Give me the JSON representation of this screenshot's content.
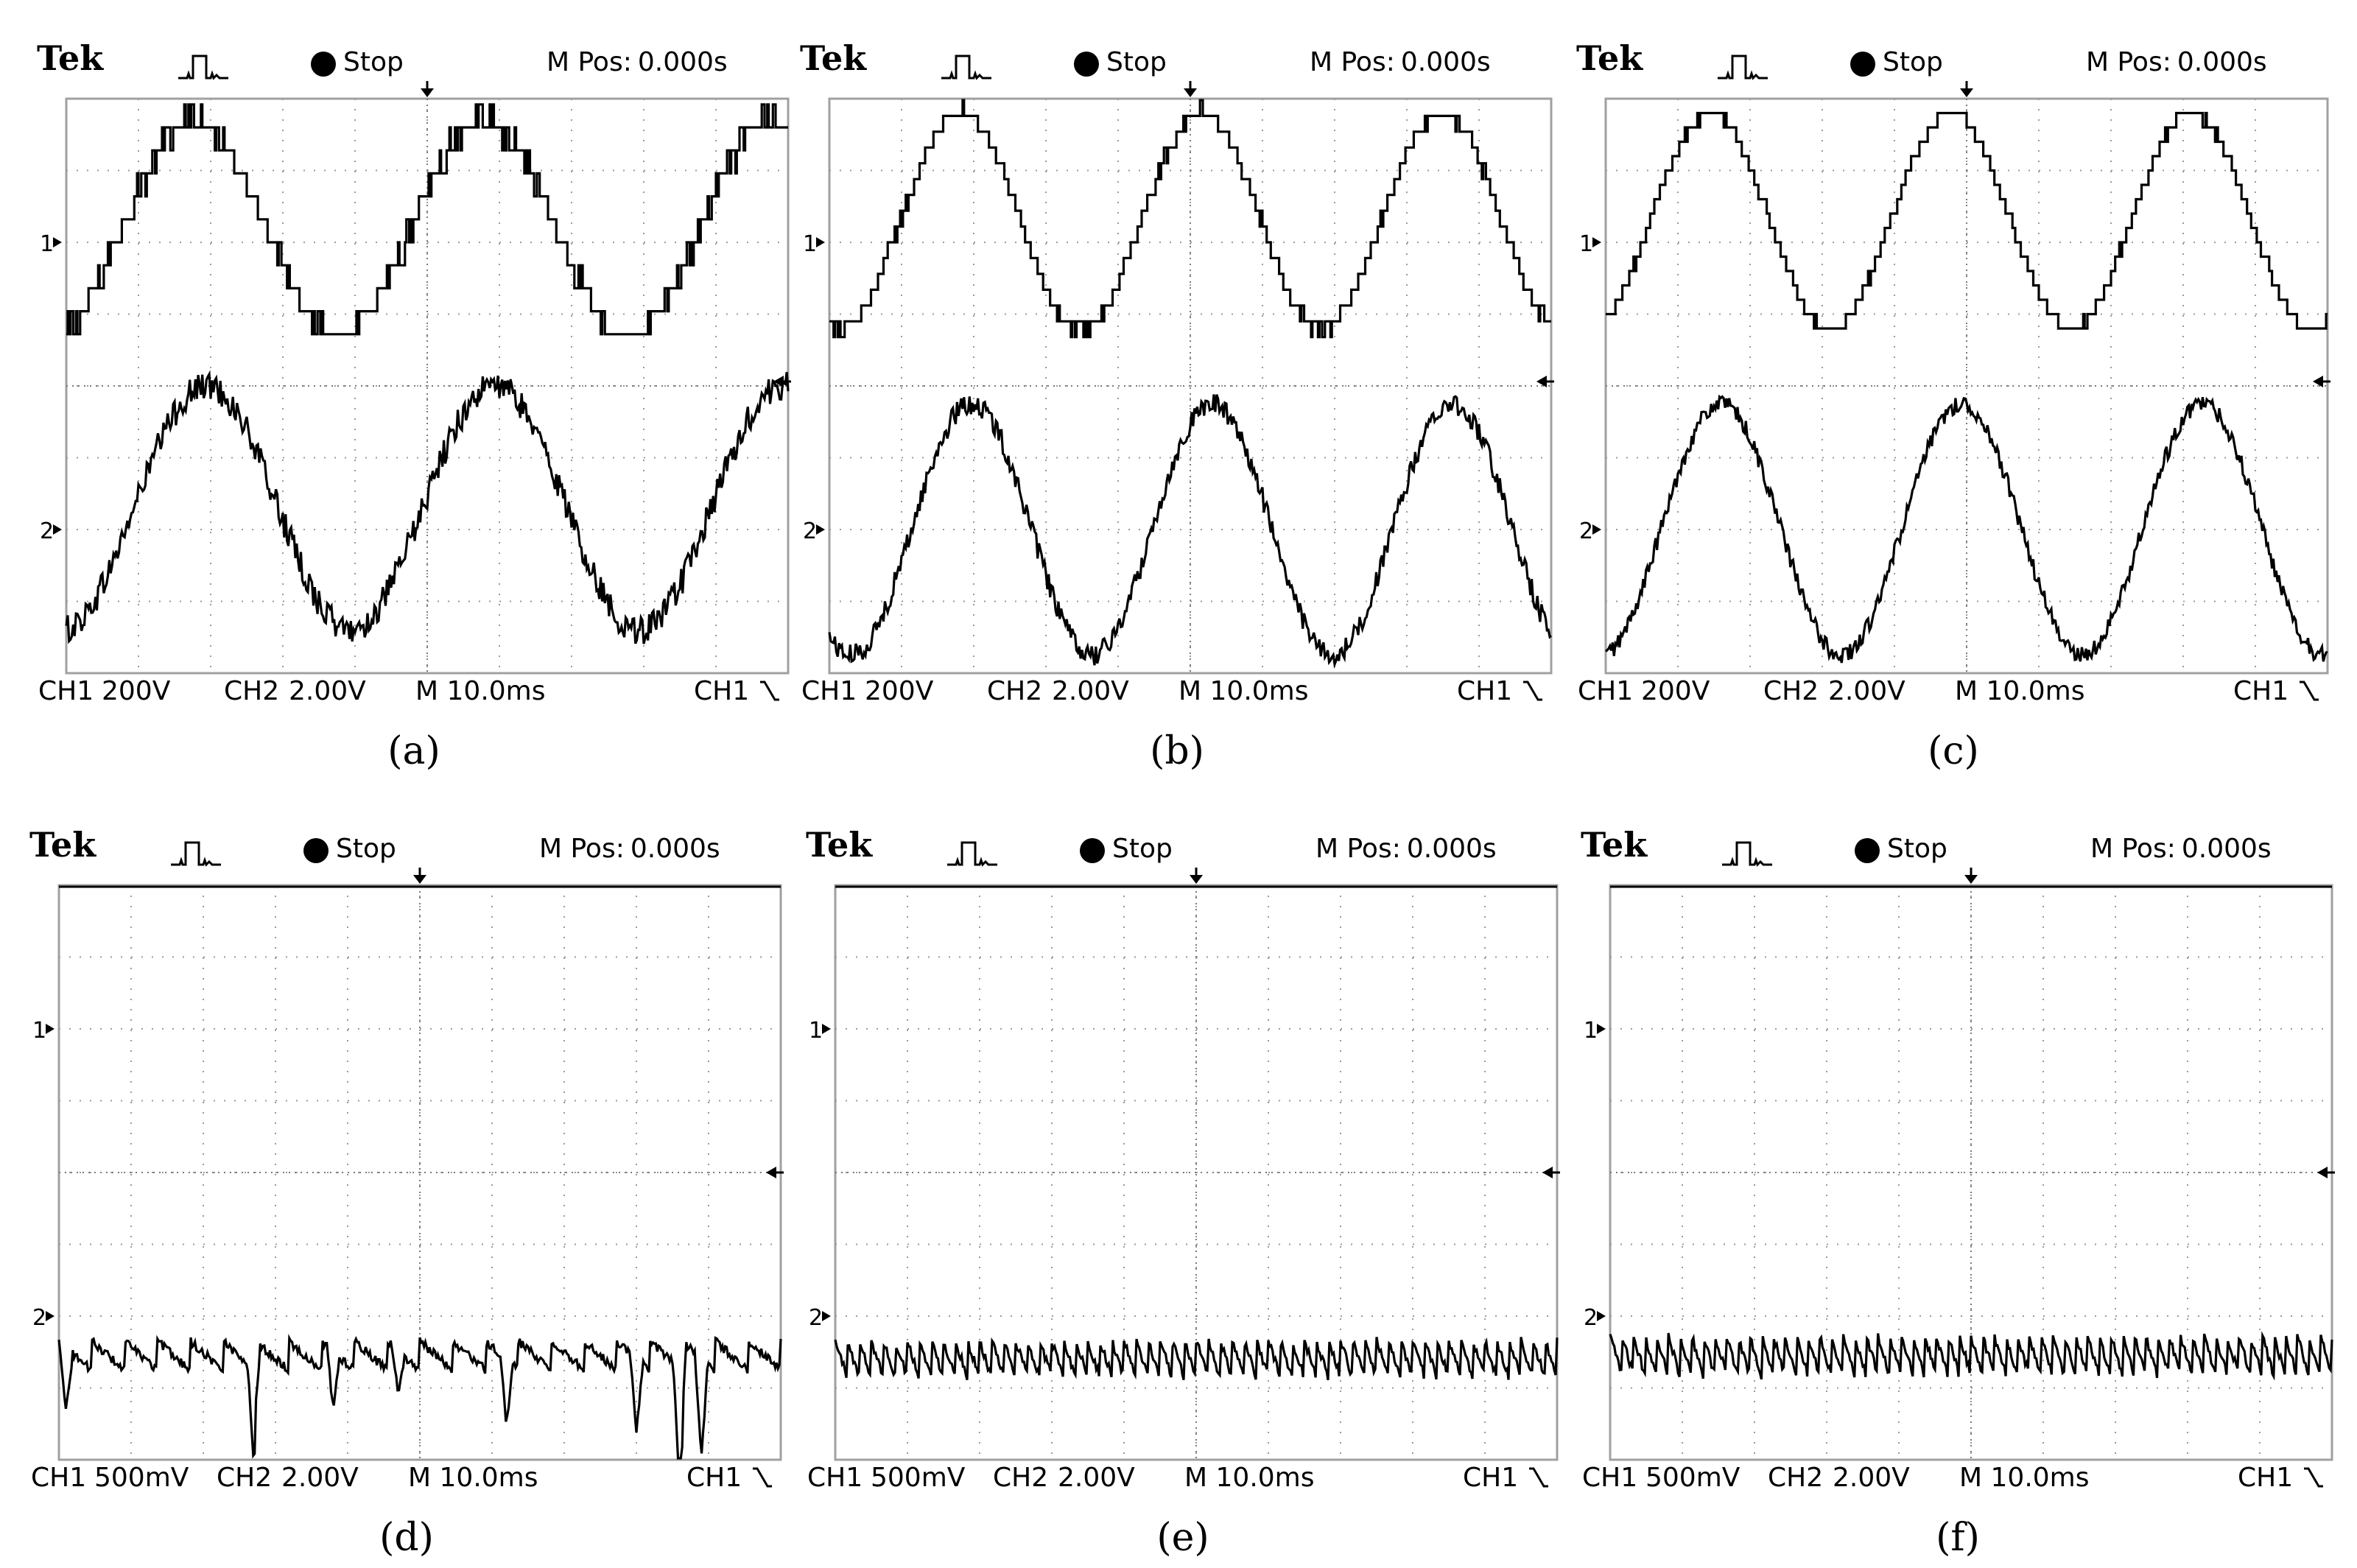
{
  "chart_data": [
    {
      "type": "line",
      "caption": "(a)",
      "header": {
        "brand": "Tek",
        "state": "Stop",
        "mpos_label": "M Pos:",
        "mpos_value": "0.000s"
      },
      "footer": {
        "ch1": "CH1",
        "ch1_scale": "200V",
        "ch2": "CH2",
        "ch2_scale": "2.00V",
        "timebase": "M 10.0ms",
        "trigger": "CH1",
        "trigger_slope": "falling"
      },
      "channel_markers": {
        "ch1": "1",
        "ch2": "2"
      },
      "grid": true,
      "xlim": [
        -50,
        50
      ],
      "series": [
        {
          "channel": 1,
          "shape": "multilevel-stepped-sine",
          "frequency_hz": 25,
          "amplitude_div": 1.5,
          "offset_div": 0.2,
          "phase": 0.35,
          "levels_div": 0.32,
          "noise_div": 0.15
        },
        {
          "channel": 2,
          "shape": "noisy-sine",
          "frequency_hz": 25,
          "amplitude_div": 1.7,
          "offset_div": 0.3,
          "phase": 0.1,
          "noise_div": 0.2
        }
      ]
    },
    {
      "type": "line",
      "caption": "(b)",
      "header": {
        "brand": "Tek",
        "state": "Stop",
        "mpos_label": "M Pos:",
        "mpos_value": "0.000s"
      },
      "footer": {
        "ch1": "CH1",
        "ch1_scale": "200V",
        "ch2": "CH2",
        "ch2_scale": "2.00V",
        "timebase": "M 10.0ms",
        "trigger": "CH1",
        "trigger_slope": "falling"
      },
      "channel_markers": {
        "ch1": "1",
        "ch2": "2"
      },
      "grid": true,
      "xlim": [
        -50,
        50
      ],
      "series": [
        {
          "channel": 1,
          "shape": "multilevel-stepped-sine",
          "frequency_hz": 30,
          "amplitude_div": 1.5,
          "offset_div": 0.3,
          "phase": 1.3,
          "levels_div": 0.22,
          "noise_div": 0.08
        },
        {
          "channel": 2,
          "shape": "noisy-sine",
          "frequency_hz": 30,
          "amplitude_div": 1.75,
          "offset_div": 0.0,
          "phase": 1.0,
          "noise_div": 0.15
        }
      ]
    },
    {
      "type": "line",
      "caption": "(c)",
      "header": {
        "brand": "Tek",
        "state": "Stop",
        "mpos_label": "M Pos:",
        "mpos_value": "0.000s"
      },
      "footer": {
        "ch1": "CH1",
        "ch1_scale": "200V",
        "ch2": "CH2",
        "ch2_scale": "2.00V",
        "timebase": "M 10.0ms",
        "trigger": "CH1",
        "trigger_slope": "falling"
      },
      "channel_markers": {
        "ch1": "1",
        "ch2": "2"
      },
      "grid": true,
      "xlim": [
        -50,
        50
      ],
      "series": [
        {
          "channel": 1,
          "shape": "multilevel-stepped-sine",
          "frequency_hz": 30,
          "amplitude_div": 1.5,
          "offset_div": 0.3,
          "phase": 2.0,
          "levels_div": 0.2,
          "noise_div": 0.05
        },
        {
          "channel": 2,
          "shape": "noisy-sine",
          "frequency_hz": 30,
          "amplitude_div": 1.75,
          "offset_div": 0.0,
          "phase": 1.7,
          "noise_div": 0.12
        }
      ]
    },
    {
      "type": "line",
      "caption": "(d)",
      "header": {
        "brand": "Tek",
        "state": "Stop",
        "mpos_label": "M Pos:",
        "mpos_value": "0.000s"
      },
      "footer": {
        "ch1": "CH1",
        "ch1_scale": "500mV",
        "ch2": "CH2",
        "ch2_scale": "2.00V",
        "timebase": "M 10.0ms",
        "trigger": "CH1",
        "trigger_slope": "falling"
      },
      "channel_markers": {
        "ch1": "1",
        "ch2": "2"
      },
      "grid": true,
      "xlim": [
        -50,
        50
      ],
      "series": [
        {
          "channel": 1,
          "shape": "flat-dc",
          "level_div": 3.0,
          "noise_div": 0.04
        },
        {
          "channel": 2,
          "shape": "sawtooth-ripple-with-dips",
          "level_div": -0.55,
          "ripple_div": 0.4,
          "cycles": 22,
          "dips": [
            [
              -49,
              -0.9
            ],
            [
              -23,
              -1.3
            ],
            [
              -12,
              -0.8
            ],
            [
              -3,
              -0.6
            ],
            [
              12,
              -0.9
            ],
            [
              30,
              -1.0
            ],
            [
              36,
              -1.8
            ],
            [
              39,
              -1.4
            ]
          ]
        }
      ]
    },
    {
      "type": "line",
      "caption": "(e)",
      "header": {
        "brand": "Tek",
        "state": "Stop",
        "mpos_label": "M Pos:",
        "mpos_value": "0.000s"
      },
      "footer": {
        "ch1": "CH1",
        "ch1_scale": "500mV",
        "ch2": "CH2",
        "ch2_scale": "2.00V",
        "timebase": "M 10.0ms",
        "trigger": "CH1",
        "trigger_slope": "falling"
      },
      "channel_markers": {
        "ch1": "1",
        "ch2": "2"
      },
      "grid": true,
      "xlim": [
        -50,
        50
      ],
      "series": [
        {
          "channel": 1,
          "shape": "flat-dc",
          "level_div": 3.0,
          "noise_div": 0.03
        },
        {
          "channel": 2,
          "shape": "sawtooth-ripple",
          "level_div": -0.6,
          "ripple_div": 0.5,
          "cycles": 60
        }
      ]
    },
    {
      "type": "line",
      "caption": "(f)",
      "header": {
        "brand": "Tek",
        "state": "Stop",
        "mpos_label": "M Pos:",
        "mpos_value": "0.000s"
      },
      "footer": {
        "ch1": "CH1",
        "ch1_scale": "500mV",
        "ch2": "CH2",
        "ch2_scale": "2.00V",
        "timebase": "M 10.0ms",
        "trigger": "CH1",
        "trigger_slope": "falling"
      },
      "channel_markers": {
        "ch1": "1",
        "ch2": "2"
      },
      "grid": true,
      "xlim": [
        -50,
        50
      ],
      "series": [
        {
          "channel": 1,
          "shape": "flat-dc",
          "level_div": 3.0,
          "noise_div": 0.03
        },
        {
          "channel": 2,
          "shape": "sawtooth-ripple",
          "level_div": -0.55,
          "ripple_div": 0.55,
          "cycles": 62
        }
      ]
    }
  ]
}
